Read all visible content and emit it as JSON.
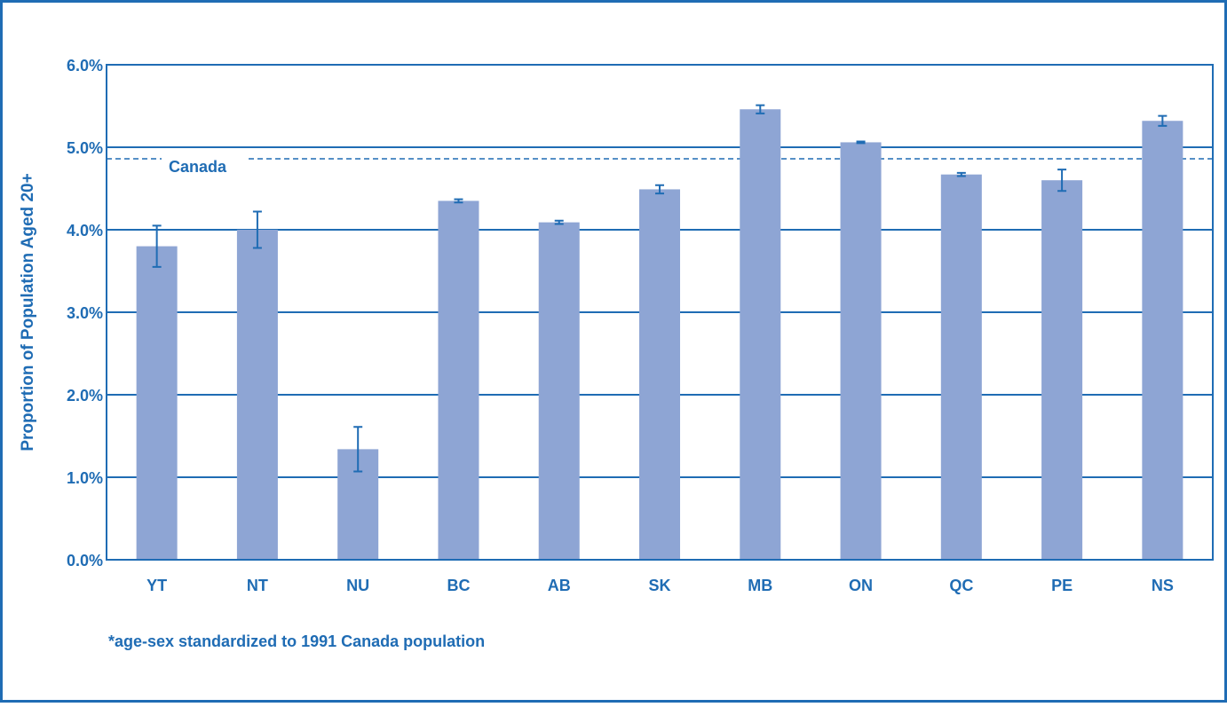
{
  "chart_data": {
    "type": "bar",
    "y_label": "Proportion of Population Aged 20+",
    "categories": [
      "YT",
      "NT",
      "NU",
      "BC",
      "AB",
      "SK",
      "MB",
      "ON",
      "QC",
      "PE",
      "NS"
    ],
    "values": [
      3.8,
      4.0,
      1.34,
      4.35,
      4.09,
      4.49,
      5.46,
      5.06,
      4.67,
      4.6,
      5.32
    ],
    "errors": [
      0.25,
      0.22,
      0.27,
      0.02,
      0.02,
      0.05,
      0.05,
      0.01,
      0.02,
      0.13,
      0.06
    ],
    "color": "#8ea5d4",
    "error_color": "#1f6cb4",
    "reference_line": {
      "label": "Canada",
      "value": 4.86
    },
    "ylim": [
      0,
      6
    ],
    "yticks": [
      {
        "value": 0,
        "label": "0.0%"
      },
      {
        "value": 1,
        "label": "1.0%"
      },
      {
        "value": 2,
        "label": "2.0%"
      },
      {
        "value": 3,
        "label": "3.0%"
      },
      {
        "value": 4,
        "label": "4.0%"
      },
      {
        "value": 5,
        "label": "5.0%"
      },
      {
        "value": 6,
        "label": "6.0%"
      }
    ],
    "grid": true,
    "footnote": "*age-sex standardized to 1991 Canada population"
  }
}
